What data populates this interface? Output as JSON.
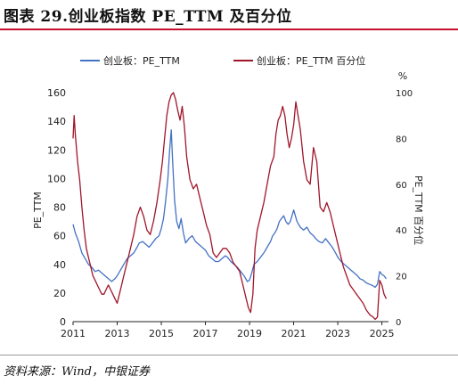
{
  "page": {
    "title": "图表 29.创业板指数 PE_TTM 及百分位",
    "source": "资料来源：Wind，中银证券"
  },
  "colors": {
    "pe_line": "#4472c4",
    "pct_line": "#a0152a",
    "title_rule": "#c8102e"
  },
  "chart_data": {
    "type": "line",
    "xlim": [
      2011,
      2025.3
    ],
    "x_ticks": [
      "2011",
      "2013",
      "2015",
      "2017",
      "2019",
      "2021",
      "2023",
      "2025"
    ],
    "y_left": {
      "label": "PE_TTM",
      "lim": [
        0,
        160
      ],
      "ticks": [
        "0",
        "20",
        "40",
        "60",
        "80",
        "100",
        "120",
        "140",
        "160"
      ]
    },
    "y_right": {
      "label": "PE_TTM 百分位",
      "unit": "%",
      "lim": [
        0,
        100
      ],
      "ticks": [
        "0",
        "20",
        "40",
        "60",
        "80",
        "100"
      ]
    },
    "series": [
      {
        "name": "创业板：PE_TTM",
        "axis": "left",
        "color": "#4472c4",
        "x": [
          2011.0,
          2011.1,
          2011.25,
          2011.4,
          2011.55,
          2011.7,
          2011.85,
          2012.0,
          2012.15,
          2012.3,
          2012.45,
          2012.6,
          2012.75,
          2012.9,
          2013.0,
          2013.15,
          2013.3,
          2013.45,
          2013.6,
          2013.75,
          2013.9,
          2014.0,
          2014.15,
          2014.3,
          2014.45,
          2014.6,
          2014.75,
          2014.9,
          2015.0,
          2015.1,
          2015.2,
          2015.3,
          2015.38,
          2015.45,
          2015.52,
          2015.6,
          2015.7,
          2015.8,
          2015.9,
          2016.0,
          2016.1,
          2016.25,
          2016.4,
          2016.55,
          2016.7,
          2016.85,
          2017.0,
          2017.15,
          2017.3,
          2017.45,
          2017.6,
          2017.75,
          2017.9,
          2018.0,
          2018.15,
          2018.3,
          2018.45,
          2018.6,
          2018.75,
          2018.9,
          2019.0,
          2019.1,
          2019.2,
          2019.35,
          2019.5,
          2019.65,
          2019.8,
          2019.95,
          2020.05,
          2020.15,
          2020.25,
          2020.35,
          2020.45,
          2020.55,
          2020.65,
          2020.75,
          2020.85,
          2021.0,
          2021.15,
          2021.3,
          2021.45,
          2021.6,
          2021.75,
          2021.9,
          2022.0,
          2022.15,
          2022.3,
          2022.45,
          2022.6,
          2022.75,
          2022.9,
          2023.0,
          2023.15,
          2023.3,
          2023.45,
          2023.6,
          2023.75,
          2023.9,
          2024.0,
          2024.15,
          2024.3,
          2024.45,
          2024.6,
          2024.7,
          2024.8,
          2024.9,
          2025.0,
          2025.1,
          2025.2
        ],
        "values": [
          68,
          62,
          56,
          48,
          44,
          40,
          38,
          35,
          36,
          34,
          32,
          30,
          28,
          30,
          32,
          36,
          40,
          44,
          46,
          48,
          52,
          55,
          56,
          54,
          52,
          55,
          58,
          60,
          65,
          72,
          85,
          100,
          120,
          134,
          110,
          85,
          70,
          65,
          72,
          62,
          55,
          58,
          60,
          56,
          54,
          52,
          50,
          46,
          44,
          42,
          42,
          44,
          46,
          45,
          42,
          40,
          38,
          35,
          32,
          28,
          29,
          34,
          40,
          42,
          45,
          48,
          52,
          56,
          60,
          62,
          65,
          70,
          72,
          74,
          70,
          68,
          70,
          78,
          70,
          66,
          64,
          66,
          62,
          60,
          58,
          56,
          55,
          58,
          55,
          52,
          48,
          45,
          42,
          40,
          38,
          36,
          34,
          32,
          30,
          29,
          27,
          26,
          25,
          24,
          26,
          35,
          33,
          32,
          30
        ]
      },
      {
        "name": "创业板：PE_TTM 百分位",
        "axis": "right",
        "color": "#a0152a",
        "x": [
          2011.0,
          2011.05,
          2011.1,
          2011.2,
          2011.3,
          2011.4,
          2011.5,
          2011.6,
          2011.7,
          2011.8,
          2011.9,
          2012.0,
          2012.1,
          2012.2,
          2012.3,
          2012.4,
          2012.5,
          2012.6,
          2012.7,
          2012.8,
          2012.9,
          2013.0,
          2013.1,
          2013.2,
          2013.3,
          2013.45,
          2013.6,
          2013.75,
          2013.9,
          2014.05,
          2014.2,
          2014.35,
          2014.5,
          2014.65,
          2014.8,
          2014.95,
          2015.05,
          2015.15,
          2015.25,
          2015.35,
          2015.45,
          2015.55,
          2015.65,
          2015.75,
          2015.85,
          2015.95,
          2016.05,
          2016.15,
          2016.3,
          2016.45,
          2016.6,
          2016.75,
          2016.9,
          2017.05,
          2017.2,
          2017.35,
          2017.5,
          2017.65,
          2017.8,
          2017.95,
          2018.1,
          2018.25,
          2018.4,
          2018.55,
          2018.7,
          2018.85,
          2018.95,
          2019.05,
          2019.15,
          2019.25,
          2019.35,
          2019.5,
          2019.65,
          2019.8,
          2019.95,
          2020.1,
          2020.2,
          2020.3,
          2020.4,
          2020.5,
          2020.6,
          2020.7,
          2020.8,
          2020.9,
          2021.0,
          2021.1,
          2021.2,
          2021.3,
          2021.45,
          2021.6,
          2021.75,
          2021.9,
          2022.05,
          2022.2,
          2022.35,
          2022.5,
          2022.65,
          2022.8,
          2022.95,
          2023.1,
          2023.25,
          2023.4,
          2023.55,
          2023.7,
          2023.85,
          2024.0,
          2024.15,
          2024.3,
          2024.45,
          2024.6,
          2024.7,
          2024.8,
          2024.9,
          2025.0,
          2025.1,
          2025.2
        ],
        "values": [
          80,
          90,
          82,
          70,
          62,
          50,
          40,
          32,
          28,
          24,
          20,
          18,
          16,
          14,
          12,
          12,
          14,
          16,
          14,
          12,
          10,
          8,
          12,
          16,
          20,
          26,
          32,
          38,
          46,
          50,
          46,
          40,
          38,
          44,
          52,
          62,
          70,
          80,
          90,
          96,
          99,
          100,
          97,
          92,
          88,
          94,
          85,
          72,
          62,
          58,
          60,
          54,
          48,
          42,
          38,
          30,
          28,
          30,
          32,
          32,
          30,
          26,
          24,
          22,
          16,
          10,
          6,
          4,
          12,
          32,
          40,
          46,
          52,
          60,
          68,
          72,
          82,
          88,
          90,
          94,
          90,
          82,
          76,
          80,
          86,
          96,
          90,
          84,
          70,
          62,
          60,
          76,
          70,
          50,
          48,
          52,
          48,
          42,
          36,
          30,
          24,
          20,
          16,
          14,
          12,
          10,
          8,
          5,
          3,
          2,
          1,
          2,
          18,
          16,
          12,
          10
        ]
      }
    ]
  }
}
